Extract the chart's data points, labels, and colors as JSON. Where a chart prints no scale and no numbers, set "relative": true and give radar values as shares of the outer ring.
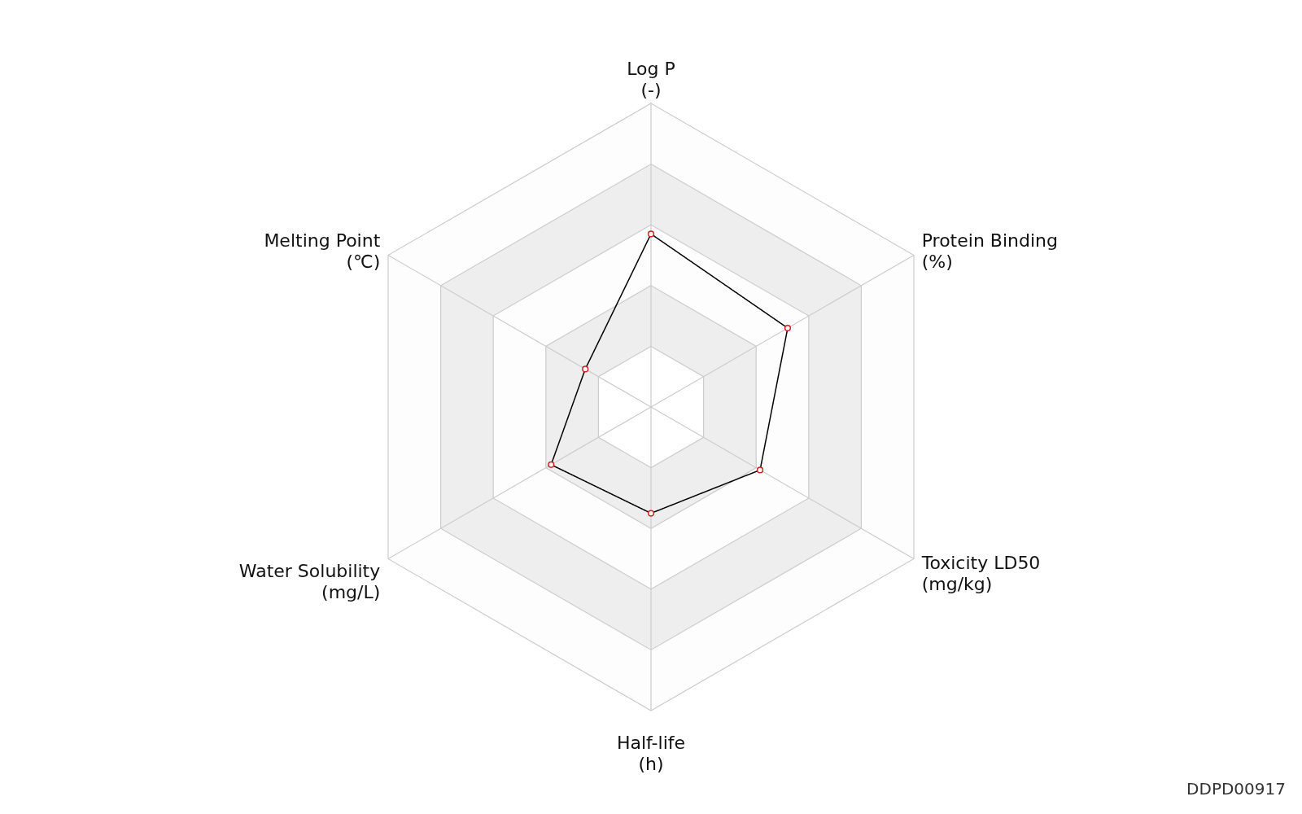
{
  "chart_data": {
    "type": "radar",
    "relative": true,
    "grid": true,
    "marker": "circle",
    "line_style": "solid",
    "categories": [
      "Log P\n(-)",
      "Protein Binding\n(%)",
      "Toxicity LD50\n(mg/kg)",
      "Half-life\n(h)",
      "Water Solubility\n(mg/L)",
      "Melting Point\n(℃)"
    ],
    "series": [
      {
        "color": "#000000",
        "values": [
          0.57,
          0.52,
          0.415,
          0.35,
          0.38,
          0.25
        ]
      }
    ],
    "annotations": [
      "DDPD00917"
    ]
  }
}
